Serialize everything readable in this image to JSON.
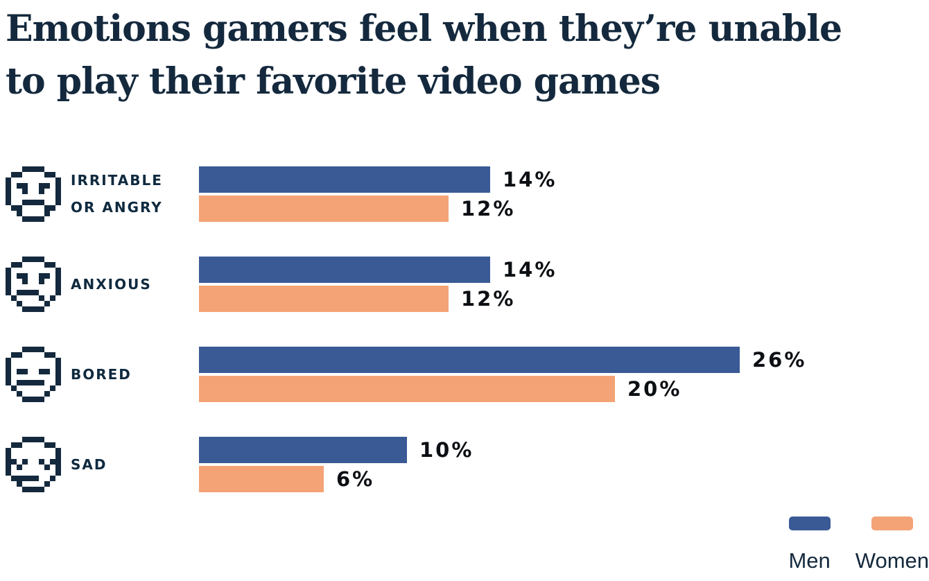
{
  "header": {
    "title": "Emotions gamers feel when they’re unable\nto play their favorite video games"
  },
  "colors": {
    "background": "#FFFFFF",
    "men": "#3A5A96",
    "women": "#F4A376",
    "navy": "#14293D",
    "ink": "#0C0F13"
  },
  "chart_data": {
    "type": "bar",
    "orientation": "horizontal",
    "title": "Emotions gamers feel when they’re unable to play their favorite video games",
    "categories": [
      "Irritable or angry",
      "Anxious",
      "Bored",
      "Sad"
    ],
    "series": [
      {
        "name": "Men",
        "color": "#3A5A96",
        "values": [
          14,
          14,
          26,
          10
        ]
      },
      {
        "name": "Women",
        "color": "#F4A376",
        "values": [
          12,
          12,
          20,
          6
        ]
      }
    ],
    "value_unit": "%",
    "value_labels_shown": true,
    "axes": "none",
    "grid": false,
    "legend_position": "bottom-right",
    "category_icons": [
      "angry-face-icon",
      "anxious-face-icon",
      "bored-face-icon",
      "sad-face-icon"
    ]
  },
  "rows": [
    {
      "icon": "angry-face-icon",
      "label": "IRRITABLE\nOR ANGRY",
      "men": 14,
      "women": 12,
      "men_label": "14%",
      "women_label": "12%"
    },
    {
      "icon": "anxious-face-icon",
      "label": "ANXIOUS",
      "men": 14,
      "women": 12,
      "men_label": "14%",
      "women_label": "12%"
    },
    {
      "icon": "bored-face-icon",
      "label": "BORED",
      "men": 26,
      "women": 20,
      "men_label": "26%",
      "women_label": "20%"
    },
    {
      "icon": "sad-face-icon",
      "label": "SAD",
      "men": 10,
      "women": 6,
      "men_label": "10%",
      "women_label": "6%"
    }
  ],
  "legend": {
    "items": [
      {
        "label": "Men"
      },
      {
        "label": "Women"
      }
    ]
  }
}
